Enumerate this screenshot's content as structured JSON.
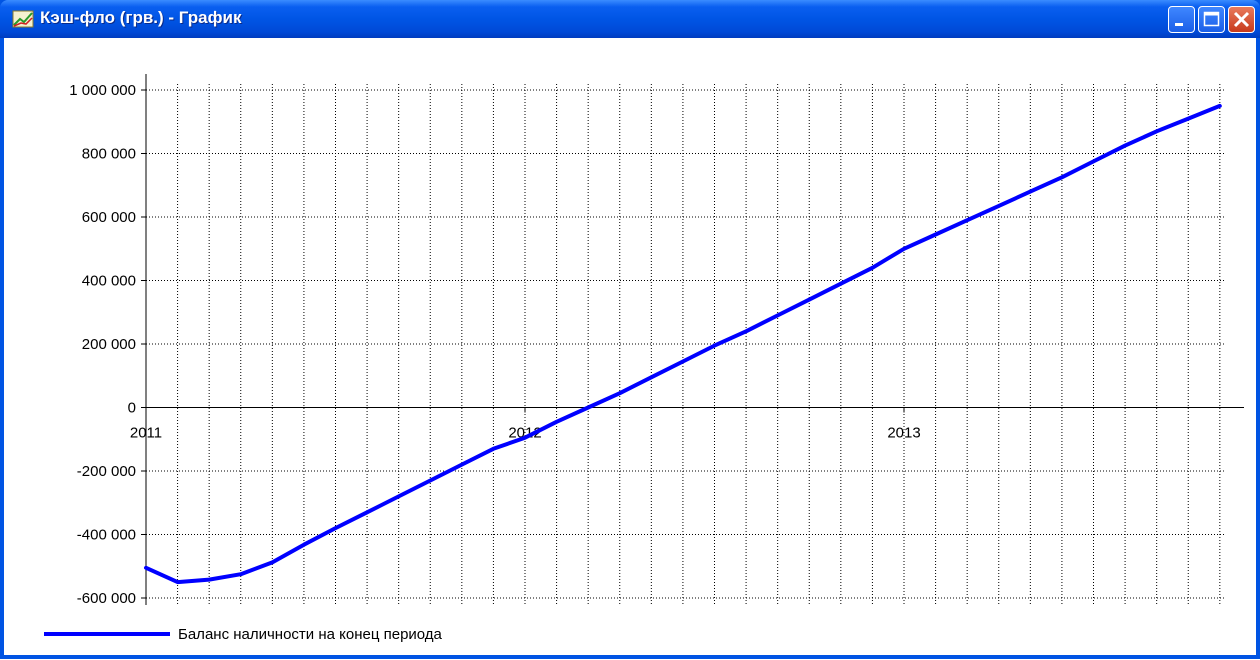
{
  "window": {
    "title": "Кэш-фло (грв.) - График",
    "icon": "line-chart-icon",
    "controls": [
      "minimize-icon",
      "maximize-icon",
      "close-icon"
    ],
    "colors": {
      "titlebar": "#0054e3",
      "close": "#d2492a"
    }
  },
  "chart_data": {
    "type": "line",
    "title": "",
    "xlabel": "",
    "ylabel": "",
    "ylim": [
      -600000,
      1000000
    ],
    "yticks": [
      1000000,
      800000,
      600000,
      400000,
      200000,
      0,
      -200000,
      -400000,
      -600000
    ],
    "ytick_labels": [
      "1 000 000",
      "800 000",
      "600 000",
      "400 000",
      "200 000",
      "0",
      "-200 000",
      "-400 000",
      "-600 000"
    ],
    "xlim": [
      "2011-01",
      "2013-11"
    ],
    "xticks": [
      "2011",
      "2012",
      "2013"
    ],
    "grid": true,
    "legend": "bottom-left",
    "series": [
      {
        "name": "Баланс наличности на конец периода",
        "color": "#0000ff",
        "x": [
          "2011-01",
          "2011-02",
          "2011-03",
          "2011-04",
          "2011-05",
          "2011-06",
          "2011-07",
          "2011-08",
          "2011-09",
          "2011-10",
          "2011-11",
          "2011-12",
          "2012-01",
          "2012-02",
          "2012-03",
          "2012-04",
          "2012-05",
          "2012-06",
          "2012-07",
          "2012-08",
          "2012-09",
          "2012-10",
          "2012-11",
          "2012-12",
          "2013-01",
          "2013-02",
          "2013-03",
          "2013-04",
          "2013-05",
          "2013-06",
          "2013-07",
          "2013-08",
          "2013-09",
          "2013-10",
          "2013-11"
        ],
        "values": [
          -505000,
          -550000,
          -542000,
          -525000,
          -488000,
          -432000,
          -380000,
          -330000,
          -280000,
          -230000,
          -180000,
          -130000,
          -95000,
          -45000,
          0,
          45000,
          95000,
          145000,
          195000,
          240000,
          290000,
          340000,
          390000,
          440000,
          500000,
          545000,
          590000,
          635000,
          680000,
          725000,
          775000,
          825000,
          870000,
          910000,
          950000
        ]
      }
    ]
  }
}
